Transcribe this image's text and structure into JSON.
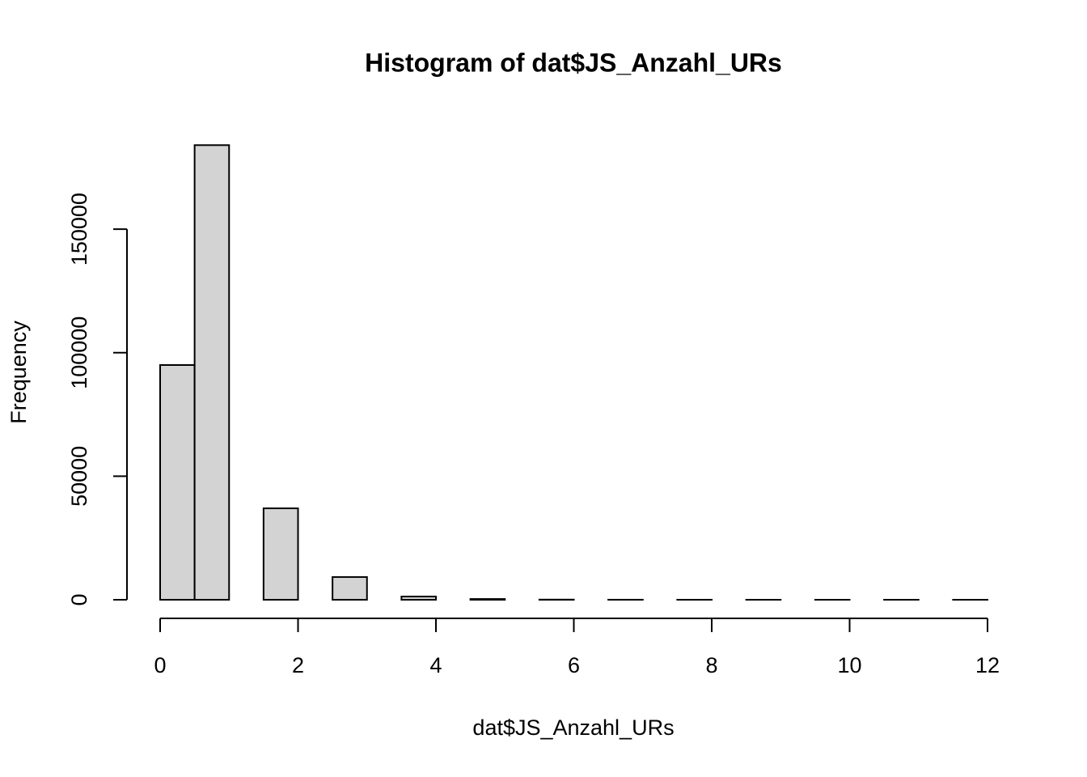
{
  "chart_data": {
    "type": "histogram",
    "title": "Histogram of dat$JS_Anzahl_URs",
    "x_label": "dat$JS_Anzahl_URs",
    "y_label": "Frequency",
    "bins": [
      0,
      0.5,
      1,
      1.5,
      2,
      2.5,
      3,
      3.5,
      4,
      4.5,
      5,
      5.5,
      6,
      6.5,
      7,
      7.5,
      8,
      8.5,
      9,
      9.5,
      10,
      10.5,
      11,
      11.5,
      12
    ],
    "counts": [
      95000,
      184000,
      0,
      37000,
      0,
      9200,
      0,
      1300,
      0,
      300,
      0,
      60,
      0,
      15,
      0,
      5,
      0,
      2,
      0,
      1,
      0,
      1,
      0,
      1
    ],
    "color": "#d3d3d3",
    "xlim": [
      0,
      12
    ],
    "xticks": [
      0,
      2,
      4,
      6,
      8,
      10,
      12
    ],
    "ylim": [
      0,
      190000
    ],
    "yticks": [
      0,
      50000,
      100000,
      150000
    ]
  }
}
